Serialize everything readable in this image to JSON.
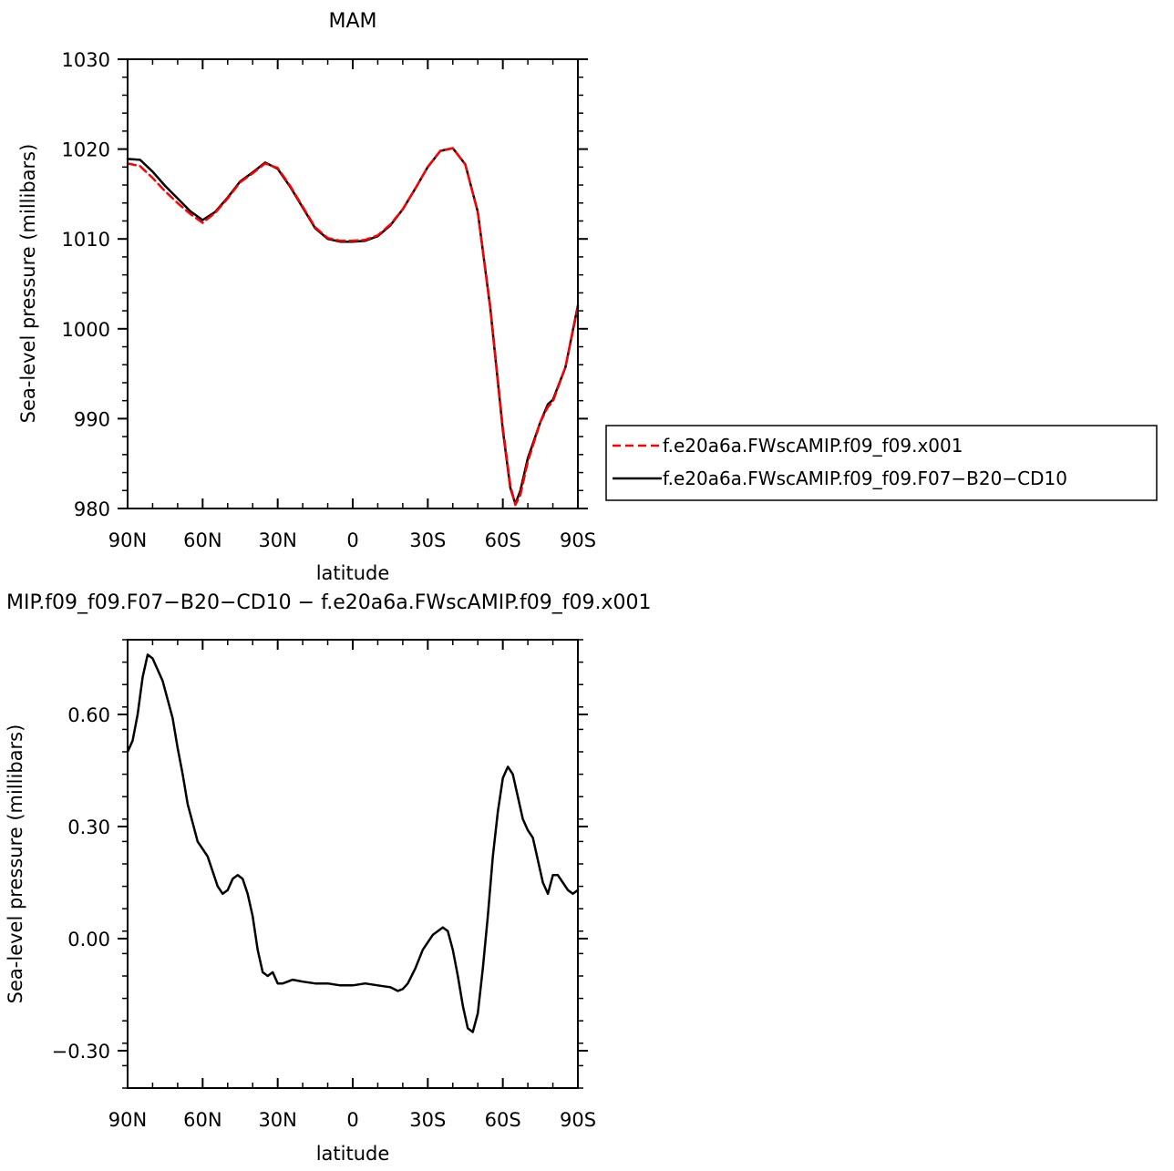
{
  "chart_data": [
    {
      "type": "line",
      "title": "MAM",
      "xlabel": "latitude",
      "ylabel": "Sea-level pressure (millibars)",
      "xlim": [
        90,
        -90
      ],
      "ylim": [
        980,
        1030
      ],
      "x_ticks": [
        90,
        60,
        30,
        0,
        -30,
        -60,
        -90
      ],
      "x_tick_labels": [
        "90N",
        "60N",
        "30N",
        "0",
        "30S",
        "60S",
        "90S"
      ],
      "y_ticks": [
        980,
        990,
        1000,
        1010,
        1020,
        1030
      ],
      "y_tick_labels": [
        "980",
        "990",
        "1000",
        "1010",
        "1020",
        "1030"
      ],
      "legend_position": "right",
      "series": [
        {
          "name": "f.e20a6a.FWscAMIP.f09_f09.x001",
          "color": "#ff0000",
          "dash": "dashed",
          "x": [
            90,
            85,
            80,
            75,
            70,
            65,
            60,
            55,
            50,
            45,
            40,
            35,
            30,
            25,
            20,
            15,
            10,
            5,
            0,
            -5,
            -10,
            -15,
            -20,
            -25,
            -30,
            -35,
            -40,
            -45,
            -50,
            -55,
            -60,
            -63,
            -65,
            -67,
            -70,
            -75,
            -78,
            -80,
            -85,
            -90
          ],
          "y": [
            1018.4,
            1018.1,
            1016.8,
            1015.3,
            1014.0,
            1012.8,
            1011.8,
            1012.9,
            1014.5,
            1016.3,
            1017.3,
            1018.4,
            1017.9,
            1015.9,
            1013.6,
            1011.3,
            1010.1,
            1009.8,
            1009.8,
            1009.9,
            1010.4,
            1011.6,
            1013.3,
            1015.6,
            1018.0,
            1019.8,
            1020.1,
            1018.3,
            1013.0,
            1002.5,
            989.0,
            982.6,
            980.4,
            981.5,
            985.2,
            989.6,
            991.3,
            991.9,
            995.7,
            1002.4
          ]
        },
        {
          "name": "f.e20a6a.FWscAMIP.f09_f09.F07−B20−CD10",
          "color": "#000000",
          "dash": "solid",
          "x": [
            90,
            85,
            80,
            75,
            70,
            65,
            60,
            55,
            50,
            45,
            40,
            35,
            30,
            25,
            20,
            15,
            10,
            5,
            0,
            -5,
            -10,
            -15,
            -20,
            -25,
            -30,
            -35,
            -40,
            -45,
            -50,
            -55,
            -60,
            -63,
            -65,
            -67,
            -70,
            -75,
            -78,
            -80,
            -85,
            -90
          ],
          "y": [
            1018.9,
            1018.8,
            1017.5,
            1015.9,
            1014.5,
            1013.1,
            1012.1,
            1013.0,
            1014.6,
            1016.4,
            1017.4,
            1018.5,
            1017.8,
            1015.8,
            1013.5,
            1011.2,
            1010.0,
            1009.7,
            1009.7,
            1009.8,
            1010.3,
            1011.5,
            1013.3,
            1015.6,
            1018.0,
            1019.8,
            1020.1,
            1018.3,
            1013.0,
            1002.3,
            988.7,
            982.3,
            980.5,
            982.0,
            985.6,
            989.6,
            991.6,
            992.1,
            995.7,
            1002.6
          ]
        }
      ]
    },
    {
      "type": "line",
      "title": "MIP.f09_f09.F07−B20−CD10 − f.e20a6a.FWscAMIP.f09_f09.x001",
      "xlabel": "latitude",
      "ylabel": "Sea-level pressure (millibars)",
      "xlim": [
        90,
        -90
      ],
      "ylim": [
        -0.4,
        0.8
      ],
      "x_ticks": [
        90,
        60,
        30,
        0,
        -30,
        -60,
        -90
      ],
      "x_tick_labels": [
        "90N",
        "60N",
        "30N",
        "0",
        "30S",
        "60S",
        "90S"
      ],
      "y_ticks": [
        -0.3,
        0,
        0.3,
        0.6
      ],
      "y_tick_labels": [
        "−0.30",
        "0.00",
        "0.30",
        "0.60"
      ],
      "series": [
        {
          "color": "#000000",
          "dash": "solid",
          "x": [
            90,
            88,
            86,
            84,
            82,
            80,
            78,
            76,
            74,
            72,
            70,
            68,
            66,
            64,
            62,
            60,
            58,
            56,
            54,
            52,
            50,
            48,
            46,
            44,
            42,
            40,
            38,
            36,
            34,
            32,
            30,
            28,
            26,
            24,
            20,
            15,
            10,
            5,
            0,
            -5,
            -10,
            -15,
            -18,
            -20,
            -22,
            -25,
            -28,
            -32,
            -36,
            -38,
            -40,
            -42,
            -44,
            -46,
            -48,
            -50,
            -52,
            -54,
            -56,
            -58,
            -60,
            -62,
            -64,
            -66,
            -68,
            -70,
            -72,
            -74,
            -76,
            -78,
            -80,
            -82,
            -84,
            -86,
            -88,
            -90
          ],
          "y": [
            0.5,
            0.53,
            0.6,
            0.7,
            0.76,
            0.75,
            0.72,
            0.69,
            0.64,
            0.59,
            0.51,
            0.44,
            0.36,
            0.31,
            0.26,
            0.24,
            0.22,
            0.18,
            0.14,
            0.12,
            0.13,
            0.16,
            0.17,
            0.16,
            0.12,
            0.06,
            -0.03,
            -0.09,
            -0.1,
            -0.09,
            -0.12,
            -0.12,
            -0.115,
            -0.11,
            -0.115,
            -0.12,
            -0.12,
            -0.125,
            -0.125,
            -0.12,
            -0.125,
            -0.13,
            -0.14,
            -0.135,
            -0.12,
            -0.08,
            -0.03,
            0.01,
            0.03,
            0.02,
            -0.03,
            -0.1,
            -0.18,
            -0.24,
            -0.25,
            -0.2,
            -0.08,
            0.06,
            0.22,
            0.34,
            0.43,
            0.46,
            0.44,
            0.38,
            0.32,
            0.29,
            0.27,
            0.21,
            0.15,
            0.12,
            0.17,
            0.17,
            0.15,
            0.13,
            0.12,
            0.13
          ]
        }
      ]
    }
  ]
}
